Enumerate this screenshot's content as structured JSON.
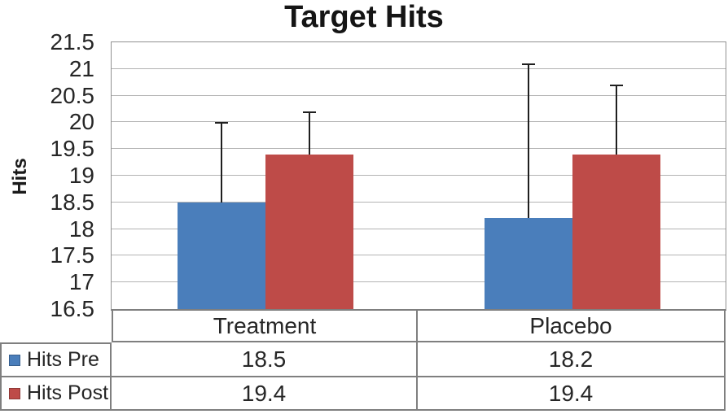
{
  "title": "Target Hits",
  "chart_data": {
    "type": "bar",
    "title": "Target Hits",
    "ylabel": "Hits",
    "xlabel": "",
    "ylim": [
      16.5,
      21.5
    ],
    "ytick_step": 0.5,
    "yticks": [
      "21.5",
      "21",
      "20.5",
      "20",
      "19.5",
      "19",
      "18.5",
      "18",
      "17.5",
      "17",
      "16.5"
    ],
    "categories": [
      "Treatment",
      "Placebo"
    ],
    "series": [
      {
        "name": "Hits Pre",
        "color": "#4A7EBB",
        "values": [
          18.5,
          18.2
        ],
        "error_plus": [
          1.5,
          2.9
        ]
      },
      {
        "name": "Hits Post",
        "color": "#BE4B48",
        "values": [
          19.4,
          19.4
        ],
        "error_plus": [
          0.8,
          1.3
        ]
      }
    ],
    "grid": true,
    "legend_position": "data-table-left"
  },
  "data_table": {
    "columns": [
      "Treatment",
      "Placebo"
    ],
    "rows": [
      {
        "label": "Hits Pre",
        "swatch_color": "#4A7EBB",
        "values": [
          "18.5",
          "18.2"
        ]
      },
      {
        "label": "Hits Post",
        "swatch_color": "#BE4B48",
        "values": [
          "19.4",
          "19.4"
        ]
      }
    ]
  },
  "colors": {
    "series_pre": "#4A7EBB",
    "series_post": "#BE4B48",
    "gridline": "#b3b3b3",
    "plot_border": "#919191",
    "axis_line": "#7f7f7f",
    "table_border": "#7f7f7f",
    "error_bar": "#1f1f1f",
    "text": "#262626",
    "background": "#ffffff"
  }
}
